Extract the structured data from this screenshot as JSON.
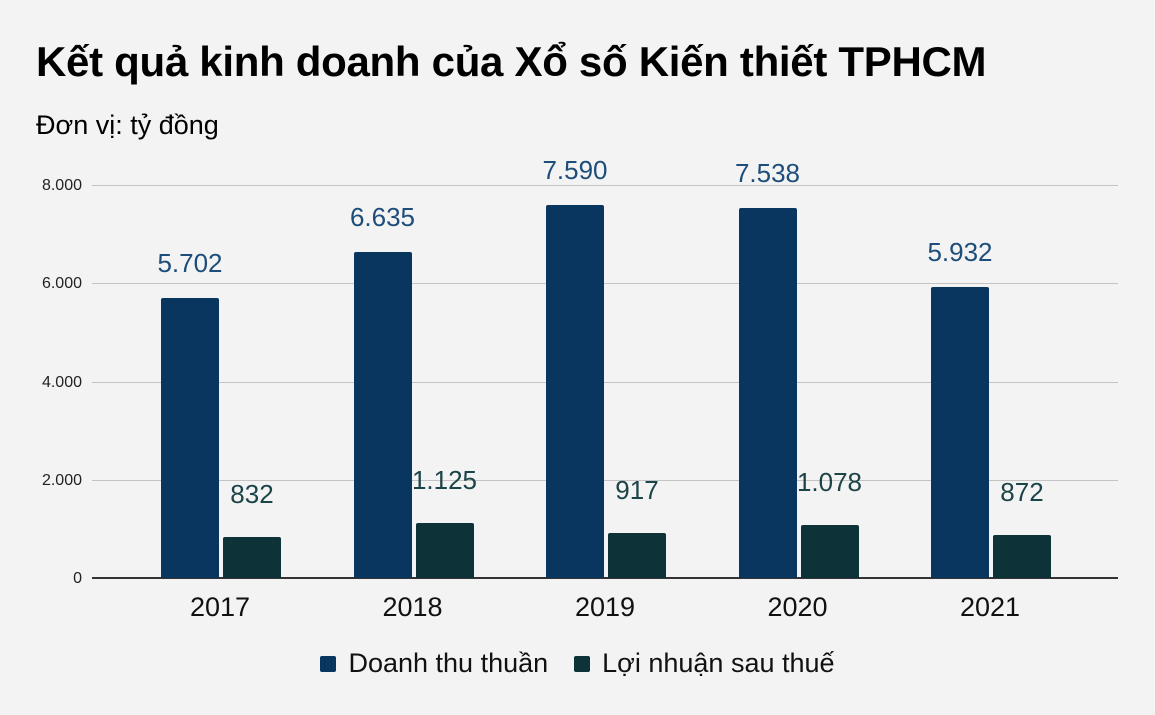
{
  "header": {
    "title": "Kết quả kinh doanh của Xổ số Kiến thiết TPHCM",
    "subtitle": "Đơn vị: tỷ đồng"
  },
  "colors": {
    "background": "#f3f3f3",
    "series_1": "#08365f",
    "series_2": "#0d3339",
    "label_1": "#1d4d7a",
    "label_2": "#1b4449",
    "grid": "#c4c4c4"
  },
  "chart_data": {
    "type": "bar",
    "title": "Kết quả kinh doanh của Xổ số Kiến thiết TPHCM",
    "subtitle": "Đơn vị: tỷ đồng",
    "xlabel": "",
    "ylabel": "",
    "categories": [
      "2017",
      "2018",
      "2019",
      "2020",
      "2021"
    ],
    "series": [
      {
        "name": "Doanh thu thuần",
        "values": [
          5702,
          6635,
          7590,
          7538,
          5932
        ],
        "labels": [
          "5.702",
          "6.635",
          "7.590",
          "7.538",
          "5.932"
        ]
      },
      {
        "name": "Lợi nhuận sau thuế",
        "values": [
          832,
          1125,
          917,
          1078,
          872
        ],
        "labels": [
          "832",
          "1.125",
          "917",
          "1.078",
          "872"
        ]
      }
    ],
    "ylim": [
      0,
      8000
    ],
    "yticks": [
      0,
      2000,
      4000,
      6000,
      8000
    ],
    "ytick_labels": [
      "0",
      "2.000",
      "4.000",
      "6.000",
      "8.000"
    ],
    "grid": true,
    "legend_position": "bottom"
  }
}
